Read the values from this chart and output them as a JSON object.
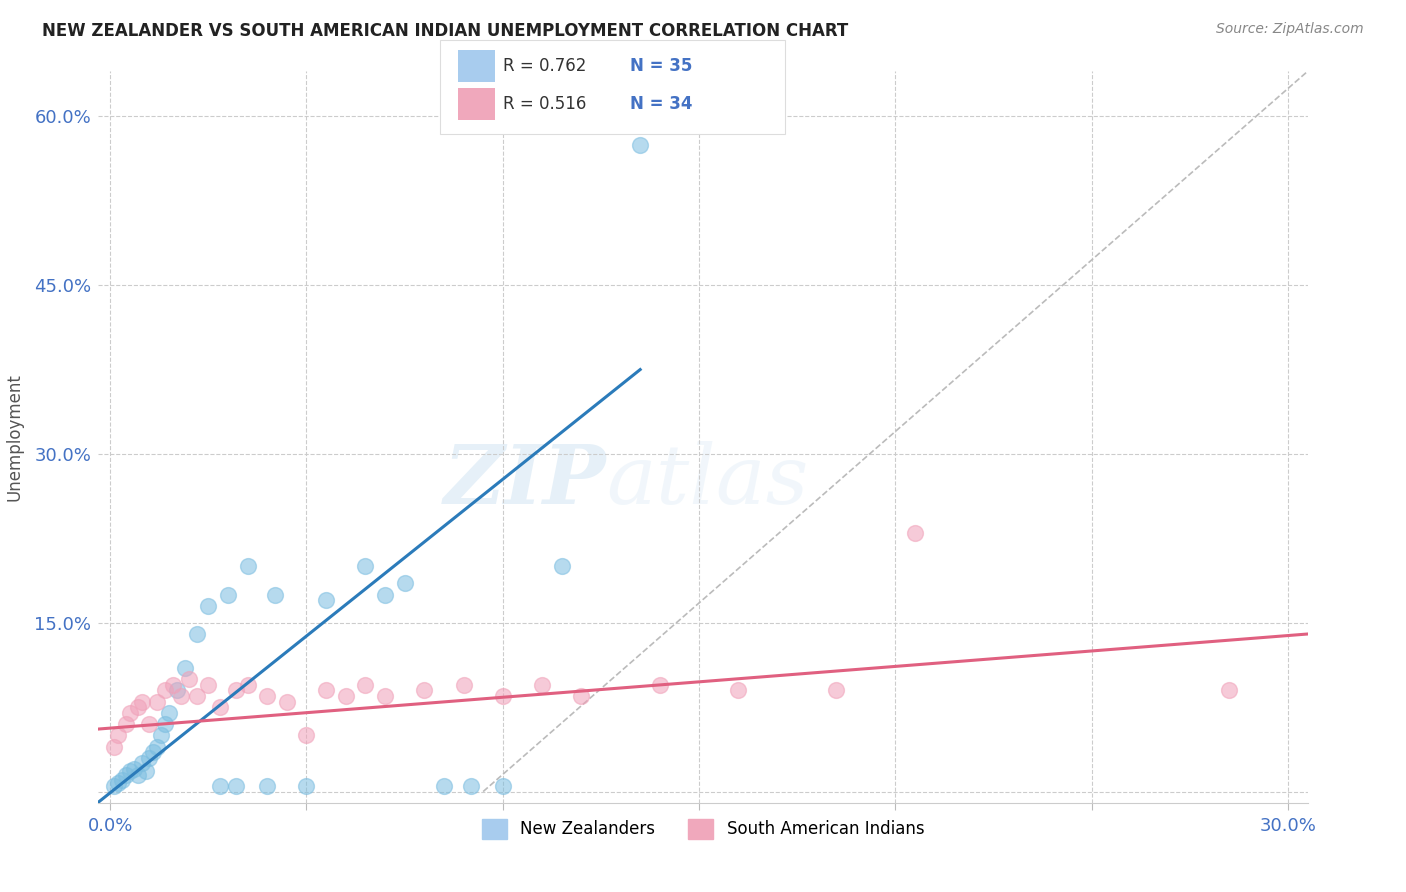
{
  "title": "NEW ZEALANDER VS SOUTH AMERICAN INDIAN UNEMPLOYMENT CORRELATION CHART",
  "source": "Source: ZipAtlas.com",
  "ylabel": "Unemployment",
  "xlim": [
    -0.003,
    0.305
  ],
  "ylim": [
    -0.01,
    0.64
  ],
  "xticks": [
    0.0,
    0.05,
    0.1,
    0.15,
    0.2,
    0.25,
    0.3
  ],
  "yticks": [
    0.0,
    0.15,
    0.3,
    0.45,
    0.6
  ],
  "xtick_labels": [
    "0.0%",
    "",
    "",
    "",
    "",
    "",
    "30.0%"
  ],
  "ytick_labels": [
    "",
    "15.0%",
    "30.0%",
    "45.0%",
    "60.0%"
  ],
  "blue_scatter_color": "#7bbde0",
  "blue_line_color": "#2b7bba",
  "pink_scatter_color": "#f0a0b8",
  "pink_line_color": "#e06080",
  "ref_line_color": "#bbbbbb",
  "tick_color": "#4472c4",
  "legend_label1": "New Zealanders",
  "legend_label2": "South American Indians",
  "watermark_zip": "ZIP",
  "watermark_atlas": "atlas",
  "nz_x": [
    0.001,
    0.002,
    0.003,
    0.004,
    0.005,
    0.006,
    0.007,
    0.008,
    0.009,
    0.01,
    0.011,
    0.012,
    0.013,
    0.014,
    0.015,
    0.017,
    0.019,
    0.022,
    0.025,
    0.028,
    0.03,
    0.032,
    0.035,
    0.04,
    0.042,
    0.05,
    0.055,
    0.065,
    0.07,
    0.075,
    0.085,
    0.092,
    0.1,
    0.115,
    0.135
  ],
  "nz_y": [
    0.005,
    0.008,
    0.01,
    0.015,
    0.018,
    0.02,
    0.015,
    0.025,
    0.018,
    0.03,
    0.035,
    0.04,
    0.05,
    0.06,
    0.07,
    0.09,
    0.11,
    0.14,
    0.165,
    0.005,
    0.175,
    0.005,
    0.2,
    0.005,
    0.175,
    0.005,
    0.17,
    0.2,
    0.175,
    0.185,
    0.005,
    0.005,
    0.005,
    0.2,
    0.575
  ],
  "sa_x": [
    0.001,
    0.002,
    0.004,
    0.005,
    0.007,
    0.008,
    0.01,
    0.012,
    0.014,
    0.016,
    0.018,
    0.02,
    0.022,
    0.025,
    0.028,
    0.032,
    0.035,
    0.04,
    0.045,
    0.05,
    0.055,
    0.06,
    0.065,
    0.07,
    0.08,
    0.09,
    0.1,
    0.11,
    0.12,
    0.14,
    0.16,
    0.185,
    0.205,
    0.285
  ],
  "sa_y": [
    0.04,
    0.05,
    0.06,
    0.07,
    0.075,
    0.08,
    0.06,
    0.08,
    0.09,
    0.095,
    0.085,
    0.1,
    0.085,
    0.095,
    0.075,
    0.09,
    0.095,
    0.085,
    0.08,
    0.05,
    0.09,
    0.085,
    0.095,
    0.085,
    0.09,
    0.095,
    0.085,
    0.095,
    0.085,
    0.095,
    0.09,
    0.09,
    0.23,
    0.09
  ],
  "nz_line_x0": -0.005,
  "nz_line_x1": 0.135,
  "nz_line_y0": -0.015,
  "nz_line_y1": 0.375,
  "sa_line_x0": -0.005,
  "sa_line_x1": 0.305,
  "sa_line_y0": 0.055,
  "sa_line_y1": 0.14,
  "ref_line_x0": 0.095,
  "ref_line_y0": 0.0,
  "ref_line_x1": 0.305,
  "ref_line_y1": 0.64
}
